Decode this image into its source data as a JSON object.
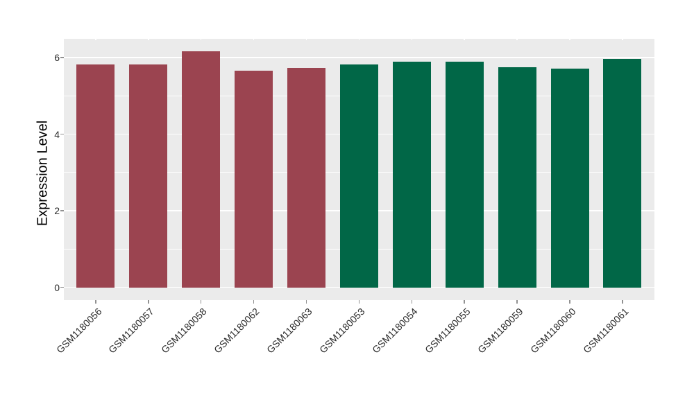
{
  "chart_data": {
    "type": "bar",
    "title": "",
    "xlabel": "",
    "ylabel": "Expression Level",
    "categories": [
      "GSM1180056",
      "GSM1180057",
      "GSM1180058",
      "GSM1180062",
      "GSM1180063",
      "GSM1180053",
      "GSM1180054",
      "GSM1180055",
      "GSM1180059",
      "GSM1180060",
      "GSM1180061"
    ],
    "values": [
      5.82,
      5.82,
      6.16,
      5.66,
      5.73,
      5.82,
      5.89,
      5.89,
      5.74,
      5.71,
      5.96
    ],
    "bar_groups": [
      "maroon",
      "maroon",
      "maroon",
      "maroon",
      "maroon",
      "green",
      "green",
      "green",
      "green",
      "green",
      "green"
    ],
    "group_colors": {
      "maroon": "#9B4450",
      "green": "#016747"
    },
    "y_ticks": [
      0,
      2,
      4,
      6
    ],
    "y_minor_ticks": [
      1,
      3,
      5
    ],
    "ylim": [
      -0.33,
      6.49
    ],
    "x_tick_angle": 45,
    "panel_bg": "#EBEBEB",
    "grid_color": "#FFFFFF",
    "legend_position": "none"
  }
}
